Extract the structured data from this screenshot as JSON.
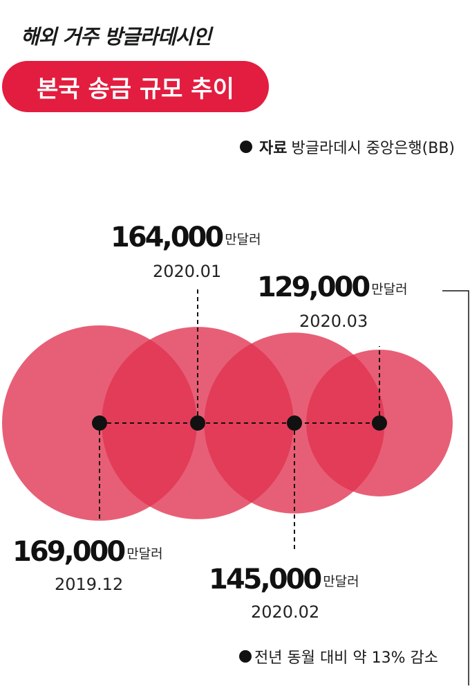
{
  "header": {
    "subtitle": "해외 거주 방글라데시인",
    "title": "본국 송금 규모 추이"
  },
  "source": {
    "label": "자료",
    "text": "방글라데시 중앙은행(BB)"
  },
  "note": "전년 동월 대비 약 13% 감소",
  "colors": {
    "accent": "#e31d3f",
    "circle": "#e0324f"
  },
  "chart_data": {
    "type": "bubble",
    "unit": "만달러",
    "points": [
      {
        "date": "2019.12",
        "value": 169000,
        "label": "169,000"
      },
      {
        "date": "2020.01",
        "value": 164000,
        "label": "164,000"
      },
      {
        "date": "2020.02",
        "value": 145000,
        "label": "145,000"
      },
      {
        "date": "2020.03",
        "value": 129000,
        "label": "129,000"
      }
    ]
  }
}
